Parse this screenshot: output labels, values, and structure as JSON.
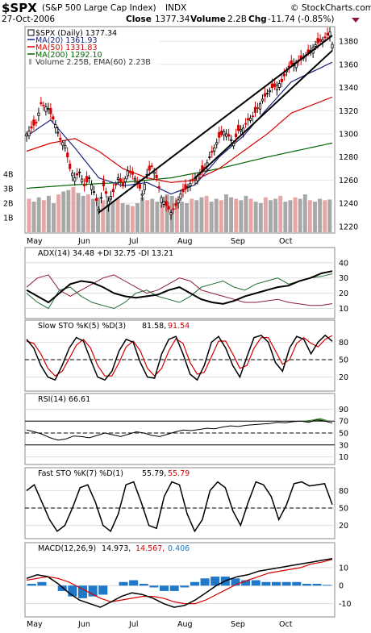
{
  "header": {
    "symbol": "$SPX",
    "name": "(S&P 500 Large Cap Index)",
    "exchange": "INDX",
    "date": "27-Oct-2006",
    "close_label": "Close",
    "close": "1377.34",
    "volume_label": "Volume",
    "volume": "2.2B",
    "chg_label": "Chg",
    "chg": "-11.74 (-0.85%)",
    "site": "© StockCharts.com"
  },
  "legend": {
    "daily": "$SPX (Daily) 1377.34",
    "ma20": "MA(20) 1361.93",
    "ma50": "MA(50) 1331.83",
    "ma200": "MA(200) 1292.10",
    "volume": "Volume 2.25B, EMA(60) 2.23B"
  },
  "colors": {
    "price_up": "#000000",
    "price_down": "#d40000",
    "ma20": "#1a237e",
    "ma50": "#d50000",
    "ma200": "#006400",
    "volume": "#a8a8a8",
    "adx": "#000000",
    "plus_di": "#1e6b2f",
    "minus_di": "#8b1a3a",
    "macd_hist": "#1f78c8"
  },
  "months": [
    "May",
    "Jun",
    "Jul",
    "Aug",
    "Sep",
    "Oct"
  ],
  "panels": {
    "adx": {
      "label": "ADX(14) 34.48 +DI 32.75 -DI 13.21",
      "ticks": [
        "40",
        "30",
        "20",
        "10"
      ]
    },
    "slowsto": {
      "label_a": "Slow STO %K(5) %D(3)",
      "val_k": "81.58,",
      "val_d": "91.54",
      "ticks": [
        "80",
        "50",
        "20"
      ]
    },
    "rsi": {
      "label": "RSI(14) 66.61",
      "ticks": [
        "90",
        "70",
        "50",
        "30",
        "10"
      ]
    },
    "faststo": {
      "label_a": "Fast STO %K(7) %D(1)",
      "val_k": "55.79,",
      "val_d": "55.79",
      "ticks": [
        "80",
        "50",
        "20"
      ]
    },
    "macd": {
      "label_a": "MACD(12,26,9)",
      "val_macd": "14.973,",
      "val_signal": "14.567,",
      "val_hist": "0.406",
      "ticks": [
        "10",
        "0",
        "-10"
      ]
    }
  },
  "chart_data": [
    {
      "type": "candlestick",
      "title": "$SPX (S&P 500 Large Cap Index) INDX",
      "x_axis": [
        "May",
        "Jun",
        "Jul",
        "Aug",
        "Sep",
        "Oct"
      ],
      "y_ticks": [
        1220,
        1240,
        1260,
        1280,
        1300,
        1320,
        1340,
        1360,
        1380
      ],
      "ylim": [
        1215,
        1392
      ],
      "close_path": [
        [
          0,
          1300
        ],
        [
          4,
          1310
        ],
        [
          6,
          1326
        ],
        [
          9,
          1322
        ],
        [
          12,
          1308
        ],
        [
          14,
          1295
        ],
        [
          16,
          1290
        ],
        [
          18,
          1270
        ],
        [
          20,
          1262
        ],
        [
          22,
          1267
        ],
        [
          24,
          1255
        ],
        [
          26,
          1262
        ],
        [
          28,
          1250
        ],
        [
          30,
          1235
        ],
        [
          32,
          1255
        ],
        [
          34,
          1242
        ],
        [
          36,
          1250
        ],
        [
          38,
          1262
        ],
        [
          40,
          1255
        ],
        [
          42,
          1268
        ],
        [
          44,
          1265
        ],
        [
          46,
          1258
        ],
        [
          48,
          1248
        ],
        [
          50,
          1265
        ],
        [
          52,
          1272
        ],
        [
          54,
          1262
        ],
        [
          56,
          1245
        ],
        [
          58,
          1238
        ],
        [
          60,
          1232
        ],
        [
          62,
          1238
        ],
        [
          64,
          1248
        ],
        [
          66,
          1252
        ],
        [
          68,
          1257
        ],
        [
          70,
          1262
        ],
        [
          72,
          1265
        ],
        [
          74,
          1270
        ],
        [
          76,
          1280
        ],
        [
          78,
          1288
        ],
        [
          80,
          1297
        ],
        [
          82,
          1302
        ],
        [
          84,
          1298
        ],
        [
          86,
          1292
        ],
        [
          88,
          1303
        ],
        [
          90,
          1305
        ],
        [
          92,
          1312
        ],
        [
          94,
          1315
        ],
        [
          96,
          1322
        ],
        [
          98,
          1330
        ],
        [
          100,
          1335
        ],
        [
          102,
          1340
        ],
        [
          104,
          1342
        ],
        [
          106,
          1345
        ],
        [
          108,
          1355
        ],
        [
          110,
          1360
        ],
        [
          112,
          1362
        ],
        [
          114,
          1364
        ],
        [
          116,
          1368
        ],
        [
          118,
          1372
        ],
        [
          120,
          1377
        ],
        [
          122,
          1380
        ],
        [
          124,
          1383
        ],
        [
          126,
          1388
        ],
        [
          127,
          1377.34
        ]
      ],
      "ma20": [
        [
          0,
          1298
        ],
        [
          10,
          1312
        ],
        [
          20,
          1288
        ],
        [
          30,
          1262
        ],
        [
          40,
          1255
        ],
        [
          50,
          1258
        ],
        [
          60,
          1248
        ],
        [
          70,
          1256
        ],
        [
          80,
          1280
        ],
        [
          90,
          1298
        ],
        [
          100,
          1322
        ],
        [
          110,
          1345
        ],
        [
          127,
          1361.93
        ]
      ],
      "ma50": [
        [
          0,
          1285
        ],
        [
          10,
          1292
        ],
        [
          20,
          1296
        ],
        [
          30,
          1285
        ],
        [
          40,
          1270
        ],
        [
          50,
          1262
        ],
        [
          60,
          1258
        ],
        [
          70,
          1260
        ],
        [
          80,
          1270
        ],
        [
          90,
          1285
        ],
        [
          100,
          1300
        ],
        [
          110,
          1318
        ],
        [
          127,
          1331.83
        ]
      ],
      "ma200": [
        [
          0,
          1253
        ],
        [
          20,
          1256
        ],
        [
          40,
          1258
        ],
        [
          60,
          1262
        ],
        [
          80,
          1270
        ],
        [
          100,
          1280
        ],
        [
          127,
          1292.1
        ]
      ],
      "volume_bil": [
        2.3,
        2.1,
        2.4,
        2.2,
        2.5,
        2.0,
        2.6,
        2.8,
        2.9,
        3.1,
        2.7,
        2.5,
        2.6,
        2.3,
        2.4,
        2.2,
        2.5,
        2.1,
        2.3,
        2.0,
        1.9,
        1.8,
        2.0,
        2.4,
        2.2,
        2.3,
        2.1,
        1.9,
        2.6,
        2.5,
        2.2,
        2.1,
        2.0,
        2.3,
        2.2,
        2.4,
        2.5,
        2.1,
        2.3,
        2.2,
        2.6,
        2.4,
        2.3,
        2.2,
        2.5,
        2.3,
        2.1,
        2.0,
        2.4,
        2.2,
        2.3,
        2.5,
        2.1,
        2.2,
        2.4,
        2.3,
        2.6,
        2.2,
        2.1,
        2.3,
        2.2,
        2.25
      ],
      "volume_ticks": [
        "4B",
        "3B",
        "2B",
        "1B"
      ],
      "trendlines": [
        [
          [
            30,
            1232
          ],
          [
            127,
            1385
          ]
        ],
        [
          [
            70,
            1262
          ],
          [
            127,
            1372
          ]
        ]
      ]
    },
    {
      "type": "line",
      "title": "ADX(14) 34.48 +DI 32.75 -DI 13.21",
      "ylim": [
        5,
        42
      ],
      "series": [
        {
          "name": "ADX(14)",
          "values": [
            22,
            18,
            14,
            20,
            26,
            28,
            27,
            24,
            20,
            18,
            17,
            18,
            19,
            22,
            24,
            20,
            16,
            14,
            13,
            15,
            18,
            20,
            22,
            24,
            25,
            28,
            30,
            33,
            34.48
          ]
        },
        {
          "name": "+DI",
          "values": [
            20,
            14,
            10,
            22,
            24,
            18,
            14,
            12,
            10,
            14,
            20,
            22,
            18,
            16,
            14,
            18,
            24,
            26,
            28,
            24,
            22,
            26,
            28,
            30,
            26,
            28,
            30,
            31,
            32.75
          ]
        },
        {
          "name": "-DI",
          "values": [
            24,
            30,
            32,
            22,
            18,
            22,
            26,
            30,
            32,
            28,
            24,
            20,
            22,
            26,
            30,
            28,
            22,
            20,
            18,
            16,
            14,
            14,
            15,
            16,
            14,
            13,
            12,
            12,
            13.21
          ]
        }
      ]
    },
    {
      "type": "line",
      "title": "Slow STO %K(5) %D(3) 81.58, 91.54",
      "ylim": [
        0,
        100
      ],
      "series": [
        {
          "name": "%K(5)",
          "values": [
            85,
            70,
            40,
            20,
            15,
            40,
            70,
            88,
            82,
            50,
            20,
            15,
            30,
            65,
            85,
            80,
            45,
            20,
            18,
            60,
            85,
            90,
            60,
            25,
            15,
            40,
            80,
            90,
            70,
            40,
            20,
            55,
            88,
            92,
            80,
            45,
            30,
            70,
            90,
            85,
            60,
            80,
            92,
            81.58
          ]
        },
        {
          "name": "%D(3)",
          "values": [
            82,
            78,
            60,
            35,
            22,
            30,
            52,
            75,
            85,
            70,
            40,
            22,
            22,
            45,
            72,
            82,
            65,
            35,
            22,
            35,
            65,
            86,
            78,
            45,
            25,
            28,
            55,
            82,
            82,
            60,
            35,
            40,
            70,
            88,
            88,
            65,
            42,
            50,
            78,
            88,
            78,
            72,
            85,
            91.54
          ]
        }
      ]
    },
    {
      "type": "line",
      "title": "RSI(14) 66.61",
      "ylim": [
        0,
        100
      ],
      "series": [
        {
          "name": "RSI(14)",
          "values": [
            55,
            52,
            48,
            42,
            38,
            40,
            45,
            44,
            42,
            46,
            50,
            47,
            44,
            48,
            52,
            50,
            46,
            44,
            48,
            52,
            55,
            54,
            56,
            58,
            57,
            60,
            62,
            61,
            63,
            64,
            65,
            66,
            68,
            67,
            69,
            70,
            68,
            72,
            70,
            66.61
          ]
        }
      ]
    },
    {
      "type": "line",
      "title": "Fast STO %K(7) %D(1) 55.79, 55.79",
      "ylim": [
        0,
        100
      ],
      "series": [
        {
          "name": "%K(7)",
          "values": [
            80,
            90,
            60,
            30,
            10,
            20,
            50,
            85,
            90,
            60,
            20,
            10,
            40,
            90,
            95,
            60,
            20,
            15,
            70,
            95,
            90,
            40,
            10,
            30,
            80,
            95,
            85,
            45,
            20,
            60,
            95,
            90,
            70,
            30,
            55,
            92,
            95,
            88,
            90,
            92,
            55.79
          ]
        },
        {
          "name": "%D(1)",
          "values": [
            80,
            90,
            60,
            30,
            10,
            20,
            50,
            85,
            90,
            60,
            20,
            10,
            40,
            90,
            95,
            60,
            20,
            15,
            70,
            95,
            90,
            40,
            10,
            30,
            80,
            95,
            85,
            45,
            20,
            60,
            95,
            90,
            70,
            30,
            55,
            92,
            95,
            88,
            90,
            92,
            55.79
          ]
        }
      ]
    },
    {
      "type": "line",
      "title": "MACD(12,26,9) 14.973, 14.567, 0.406",
      "ylim": [
        -16,
        18
      ],
      "series": [
        {
          "name": "MACD",
          "values": [
            4,
            6,
            5,
            1,
            -4,
            -8,
            -10,
            -12,
            -9,
            -6,
            -4,
            -5,
            -7,
            -10,
            -12,
            -11,
            -8,
            -4,
            0,
            3,
            5,
            6,
            8,
            9,
            10,
            11,
            12,
            13,
            14,
            14.973
          ]
        },
        {
          "name": "Signal",
          "values": [
            3,
            4,
            5,
            4,
            2,
            -1,
            -4,
            -7,
            -9,
            -8,
            -7,
            -6,
            -6,
            -7,
            -9,
            -10,
            -10,
            -8,
            -5,
            -2,
            1,
            3,
            5,
            7,
            8,
            9,
            10,
            12,
            13,
            14.567
          ]
        },
        {
          "name": "Histogram",
          "values": [
            1,
            2,
            0,
            -3,
            -6,
            -7,
            -6,
            -5,
            0,
            2,
            3,
            1,
            -1,
            -3,
            -3,
            -1,
            2,
            4,
            5,
            5,
            4,
            3,
            3,
            2,
            2,
            2,
            2,
            1,
            1,
            0.406
          ]
        }
      ]
    }
  ]
}
